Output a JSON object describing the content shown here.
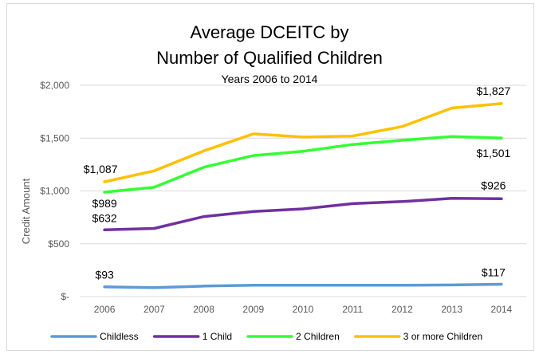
{
  "chart_data": {
    "type": "line",
    "title": "Average DCEITC by",
    "title_line2": "Number of Qualified Children",
    "subtitle": "Years 2006 to 2014",
    "ylabel": "Credit Amount",
    "xlabel": "",
    "x": [
      "2006",
      "2007",
      "2008",
      "2009",
      "2010",
      "2011",
      "2012",
      "2013",
      "2014"
    ],
    "ylim": [
      0,
      2000
    ],
    "yticks": [
      0,
      500,
      1000,
      1500,
      2000
    ],
    "ytick_labels": [
      "$-",
      "$500",
      "$1,000",
      "$1,500",
      "$2,000"
    ],
    "grid": true,
    "legend_position": "bottom",
    "series": [
      {
        "name": "Childless",
        "color": "#5b9bd5",
        "values": [
          93,
          85,
          100,
          107,
          107,
          107,
          107,
          110,
          117
        ]
      },
      {
        "name": "1 Child",
        "color": "#7030a0",
        "values": [
          632,
          645,
          758,
          805,
          830,
          880,
          900,
          930,
          926
        ]
      },
      {
        "name": "2 Children",
        "color": "#33ff33",
        "values": [
          989,
          1035,
          1225,
          1335,
          1375,
          1440,
          1480,
          1515,
          1501
        ]
      },
      {
        "name": "3 or more Children",
        "color": "#ffc000",
        "values": [
          1087,
          1190,
          1380,
          1540,
          1510,
          1520,
          1610,
          1785,
          1827
        ]
      }
    ],
    "data_labels": [
      {
        "series": 0,
        "index": 0,
        "text": "$93"
      },
      {
        "series": 0,
        "index": 8,
        "text": "$117"
      },
      {
        "series": 1,
        "index": 0,
        "text": "$632"
      },
      {
        "series": 1,
        "index": 8,
        "text": "$926"
      },
      {
        "series": 2,
        "index": 0,
        "text": "$989"
      },
      {
        "series": 2,
        "index": 8,
        "text": "$1,501"
      },
      {
        "series": 3,
        "index": 0,
        "text": "$1,087"
      },
      {
        "series": 3,
        "index": 8,
        "text": "$1,827"
      }
    ]
  }
}
